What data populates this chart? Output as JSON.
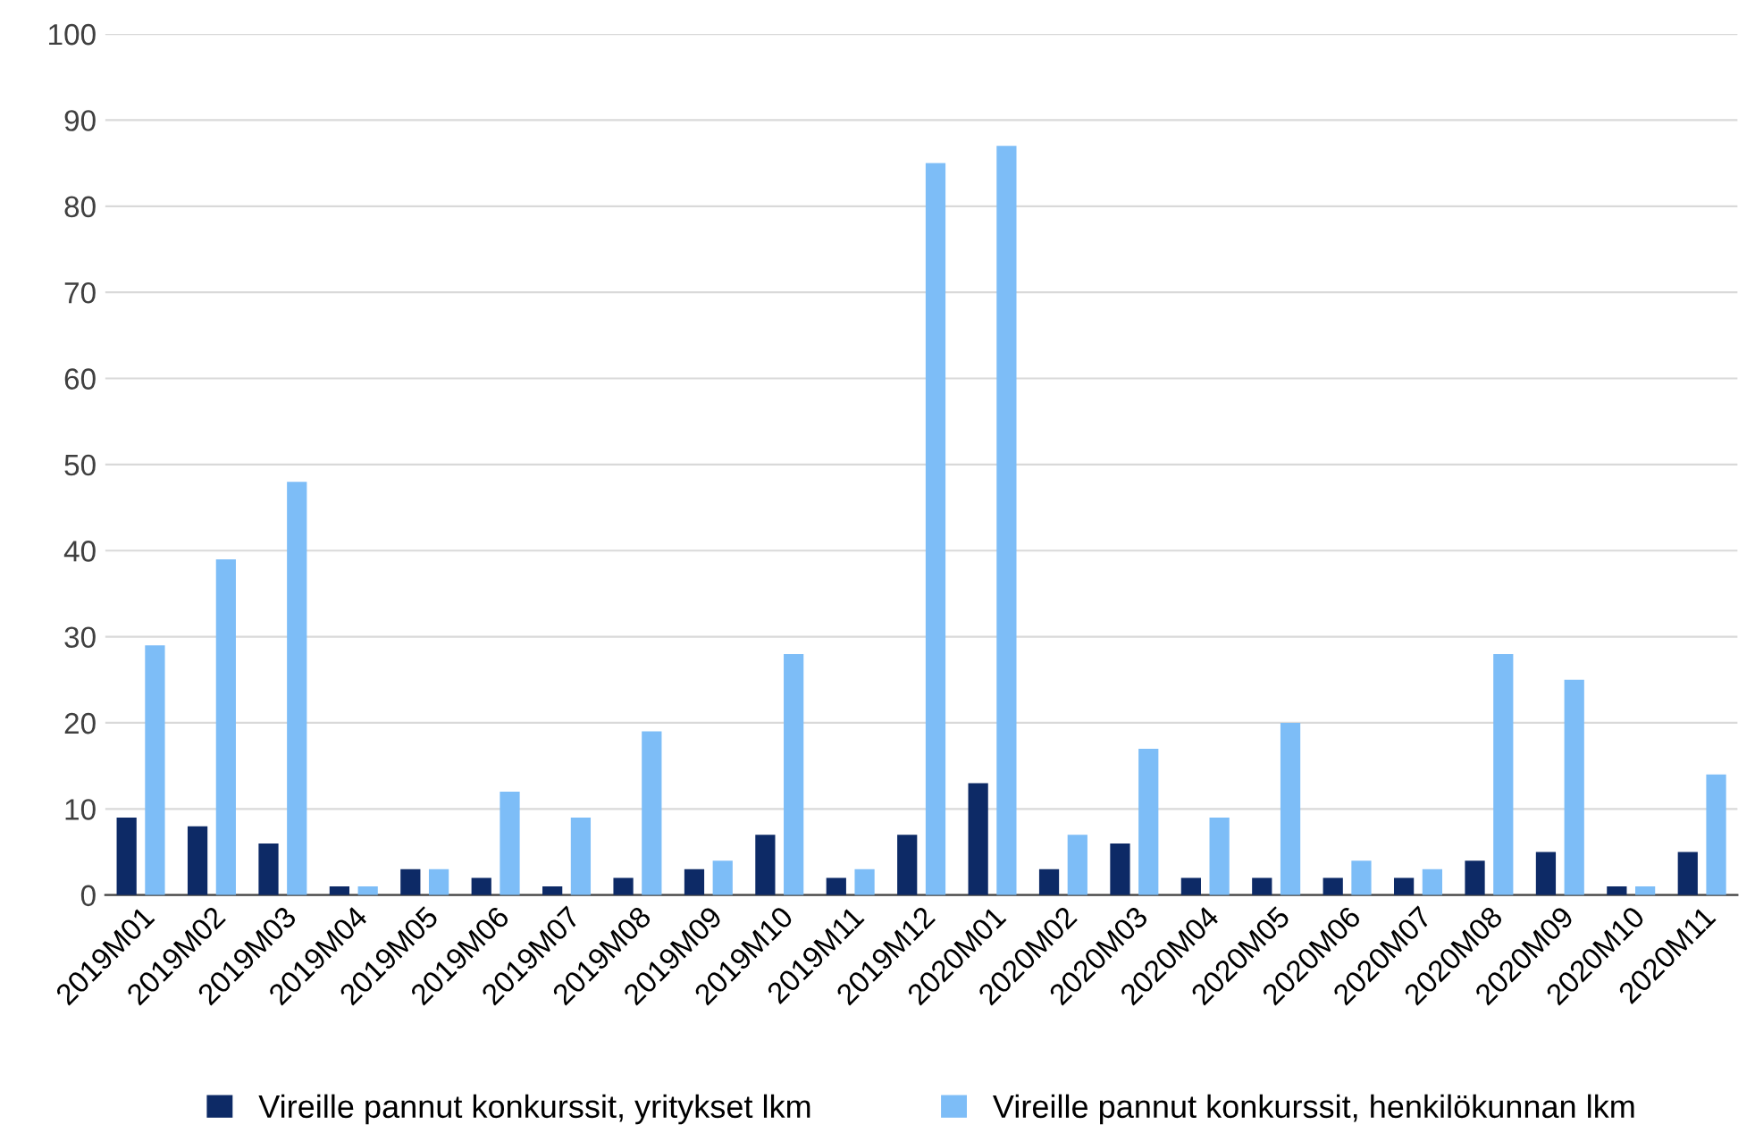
{
  "chart_data": {
    "type": "bar",
    "categories": [
      "2019M01",
      "2019M02",
      "2019M03",
      "2019M04",
      "2019M05",
      "2019M06",
      "2019M07",
      "2019M08",
      "2019M09",
      "2019M10",
      "2019M11",
      "2019M12",
      "2020M01",
      "2020M02",
      "2020M03",
      "2020M04",
      "2020M05",
      "2020M06",
      "2020M07",
      "2020M08",
      "2020M09",
      "2020M10",
      "2020M11"
    ],
    "series": [
      {
        "name": "Vireille pannut konkurssit, yritykset lkm",
        "color": "#0d2a66",
        "values": [
          9,
          8,
          6,
          1,
          3,
          2,
          1,
          2,
          3,
          7,
          2,
          7,
          13,
          3,
          6,
          2,
          2,
          2,
          2,
          4,
          5,
          1,
          5
        ]
      },
      {
        "name": "Vireille pannut konkurssit, henkilökunnan lkm",
        "color": "#7dbdf7",
        "values": [
          29,
          39,
          48,
          1,
          3,
          12,
          9,
          19,
          4,
          28,
          3,
          85,
          87,
          7,
          17,
          9,
          20,
          4,
          3,
          28,
          25,
          1,
          14
        ]
      }
    ],
    "ylim": [
      0,
      100
    ],
    "yticks": [
      0,
      10,
      20,
      30,
      40,
      50,
      60,
      70,
      80,
      90,
      100
    ],
    "grid": "y",
    "legend": "bottom"
  }
}
